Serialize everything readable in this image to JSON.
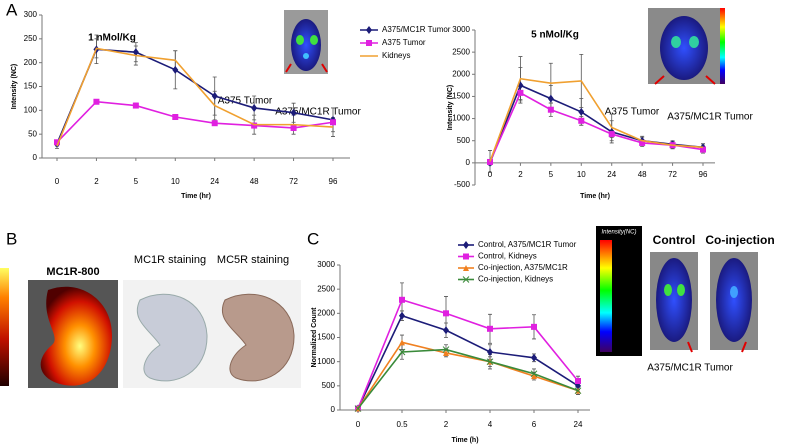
{
  "panels": {
    "labels": [
      "A",
      "B",
      "C"
    ]
  },
  "images": {
    "kidney_probe": "MC1R-800",
    "mc1r_stain": "MC1R staining",
    "mc5r_stain": "MC5R staining",
    "colorbar_title": "Intensity(NC)",
    "control": "Control",
    "coinjection": "Co-injection",
    "tumor_caption": "A375/MC1R Tumor"
  },
  "chart_data": [
    {
      "type": "line",
      "title": "1 nMol/Kg",
      "x_label": "Time (hr)",
      "y_label": "Intensity (NC)",
      "categories": [
        "0",
        "2",
        "5",
        "10",
        "24",
        "48",
        "72",
        "96"
      ],
      "ylim": [
        0,
        300
      ],
      "yticks": [
        0,
        50,
        100,
        150,
        200,
        250,
        300
      ],
      "annotations": [
        "A375 Tumor",
        "A375/MC1R Tumor"
      ],
      "series": [
        {
          "name": "A375/MC1R Tumor",
          "color": "#1c1c78",
          "marker": "diamond",
          "values": [
            30,
            228,
            222,
            185,
            130,
            105,
            95,
            80
          ],
          "errors": [
            5,
            30,
            20,
            40,
            40,
            25,
            20,
            25
          ]
        },
        {
          "name": "A375 Tumor",
          "color": "#e020e0",
          "marker": "square",
          "values": [
            33,
            118,
            110,
            86,
            73,
            68,
            63,
            75
          ],
          "errors": [
            3,
            5,
            5,
            5,
            5,
            5,
            5,
            5
          ]
        },
        {
          "name": "Kidneys",
          "color": "#f0a030",
          "marker": "none",
          "values": [
            25,
            230,
            215,
            205,
            110,
            70,
            70,
            65
          ],
          "errors": [
            5,
            20,
            20,
            20,
            30,
            20,
            20,
            20
          ]
        }
      ]
    },
    {
      "type": "line",
      "title": "5 nMol/Kg",
      "x_label": "Time (hr)",
      "y_label": "Intensity (NC)",
      "categories": [
        "0",
        "2",
        "5",
        "10",
        "24",
        "48",
        "72",
        "96"
      ],
      "ylim": [
        -500,
        3000
      ],
      "yticks": [
        -500,
        0,
        500,
        1000,
        1500,
        2000,
        2500,
        3000
      ],
      "annotations": [
        "A375 Tumor",
        "A375/MC1R Tumor"
      ],
      "series": [
        {
          "color": "#1c1c78",
          "marker": "diamond",
          "values": [
            0,
            1750,
            1450,
            1150,
            700,
            500,
            420,
            350
          ],
          "errors": [
            50,
            400,
            300,
            300,
            250,
            100,
            80,
            80
          ]
        },
        {
          "color": "#e020e0",
          "marker": "square",
          "values": [
            20,
            1580,
            1200,
            950,
            650,
            450,
            400,
            300
          ],
          "errors": [
            20,
            150,
            150,
            100,
            80,
            80,
            80,
            80
          ]
        },
        {
          "color": "#f0a030",
          "marker": "none",
          "values": [
            30,
            1900,
            1800,
            1850,
            800,
            500,
            400,
            350
          ],
          "errors": [
            250,
            500,
            450,
            600,
            300,
            80,
            80,
            80
          ]
        }
      ]
    },
    {
      "type": "line",
      "x_label": "Time (h)",
      "y_label": "Normalized Count",
      "categories": [
        "0",
        "0.5",
        "2",
        "4",
        "6",
        "24"
      ],
      "ylim": [
        0,
        3000
      ],
      "yticks": [
        0,
        500,
        1000,
        1500,
        2000,
        2500,
        3000
      ],
      "series": [
        {
          "name": "Control, A375/MC1R Tumor",
          "color": "#1c1c78",
          "marker": "diamond",
          "values": [
            30,
            1950,
            1650,
            1200,
            1080,
            500
          ],
          "errors": [
            20,
            100,
            150,
            150,
            80,
            80
          ]
        },
        {
          "name": "Control, Kidneys",
          "color": "#e020e0",
          "marker": "square",
          "values": [
            30,
            2280,
            2000,
            1680,
            1720,
            600
          ],
          "errors": [
            20,
            350,
            350,
            300,
            250,
            100
          ]
        },
        {
          "name": "Co-injection, A375/MC1R",
          "color": "#f08020",
          "marker": "triangle",
          "values": [
            30,
            1400,
            1180,
            1000,
            700,
            400
          ],
          "errors": [
            20,
            150,
            80,
            100,
            80,
            80
          ]
        },
        {
          "name": "Co-injection, Kidneys",
          "color": "#3a8a3a",
          "marker": "cross",
          "values": [
            30,
            1200,
            1250,
            1000,
            750,
            400
          ],
          "errors": [
            20,
            150,
            100,
            150,
            100,
            80
          ]
        }
      ]
    }
  ]
}
